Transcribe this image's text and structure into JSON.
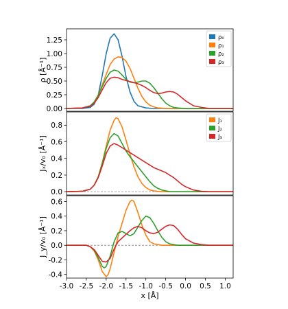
{
  "chart_data": {
    "type": "line",
    "shared_x": {
      "label_html": "x [Å]",
      "xlim": [
        -3.0,
        1.2
      ],
      "ticks": [
        -3.0,
        -2.5,
        -2.0,
        -1.5,
        -1.0,
        -0.5,
        0.0,
        0.5,
        1.0
      ],
      "tick_labels": [
        "-3.0",
        "-2.5",
        "-2.0",
        "-1.5",
        "-1.0",
        "-0.5",
        "0.0",
        "0.5",
        "1.0"
      ]
    },
    "panels": [
      {
        "id": "rho",
        "ylabel": "ρ [Å⁻¹]",
        "ylim": [
          -0.05,
          1.45
        ],
        "yticks": [
          0.0,
          0.25,
          0.5,
          0.75,
          1.0,
          1.25
        ],
        "ytick_labels": [
          "0.00",
          "0.25",
          "0.50",
          "0.75",
          "1.00",
          "1.25"
        ],
        "zero_line": false,
        "legend": "top-right",
        "series": [
          {
            "name": "ρ₀",
            "color": "#1f77b4",
            "x": [
              -3.0,
              -2.6,
              -2.4,
              -2.3,
              -2.2,
              -2.1,
              -2.0,
              -1.9,
              -1.8,
              -1.7,
              -1.6,
              -1.5,
              -1.4,
              -1.3,
              -1.2,
              -1.0,
              -0.8,
              -0.5,
              0.0,
              1.2
            ],
            "y": [
              0,
              0,
              0.02,
              0.08,
              0.25,
              0.6,
              1.0,
              1.28,
              1.36,
              1.25,
              0.95,
              0.58,
              0.3,
              0.13,
              0.05,
              0.01,
              0,
              0,
              0,
              0
            ]
          },
          {
            "name": "ρ₁",
            "color": "#ff7f0e",
            "x": [
              -3.0,
              -2.6,
              -2.4,
              -2.3,
              -2.2,
              -2.1,
              -2.0,
              -1.9,
              -1.8,
              -1.7,
              -1.6,
              -1.5,
              -1.4,
              -1.3,
              -1.2,
              -1.1,
              -1.0,
              -0.9,
              -0.8,
              -0.7,
              -0.6,
              -0.4,
              -0.2,
              0.0,
              1.2
            ],
            "y": [
              0,
              0.01,
              0.05,
              0.12,
              0.25,
              0.43,
              0.62,
              0.8,
              0.9,
              0.94,
              0.93,
              0.86,
              0.73,
              0.55,
              0.37,
              0.22,
              0.12,
              0.06,
              0.03,
              0.01,
              0.005,
              0,
              0,
              0,
              0
            ]
          },
          {
            "name": "ρ₂",
            "color": "#2ca02c",
            "x": [
              -3.0,
              -2.6,
              -2.4,
              -2.3,
              -2.2,
              -2.1,
              -2.0,
              -1.9,
              -1.8,
              -1.7,
              -1.6,
              -1.5,
              -1.4,
              -1.3,
              -1.2,
              -1.1,
              -1.0,
              -0.9,
              -0.8,
              -0.7,
              -0.6,
              -0.5,
              -0.4,
              -0.3,
              -0.2,
              0.0,
              0.3,
              1.2
            ],
            "y": [
              0,
              0.01,
              0.05,
              0.12,
              0.24,
              0.4,
              0.55,
              0.66,
              0.7,
              0.68,
              0.61,
              0.53,
              0.48,
              0.47,
              0.48,
              0.5,
              0.5,
              0.46,
              0.38,
              0.28,
              0.18,
              0.1,
              0.05,
              0.02,
              0.01,
              0,
              0,
              0
            ]
          },
          {
            "name": "ρ₃",
            "color": "#d62728",
            "x": [
              -3.0,
              -2.6,
              -2.4,
              -2.3,
              -2.2,
              -2.1,
              -2.0,
              -1.9,
              -1.8,
              -1.7,
              -1.6,
              -1.5,
              -1.4,
              -1.3,
              -1.2,
              -1.1,
              -1.0,
              -0.9,
              -0.8,
              -0.7,
              -0.6,
              -0.5,
              -0.4,
              -0.3,
              -0.2,
              -0.1,
              0.0,
              0.2,
              0.4,
              0.6,
              1.2
            ],
            "y": [
              0,
              0.01,
              0.04,
              0.1,
              0.2,
              0.34,
              0.47,
              0.55,
              0.57,
              0.56,
              0.53,
              0.51,
              0.49,
              0.47,
              0.45,
              0.42,
              0.38,
              0.33,
              0.29,
              0.27,
              0.28,
              0.3,
              0.31,
              0.3,
              0.26,
              0.2,
              0.14,
              0.05,
              0.02,
              0,
              0
            ]
          }
        ]
      },
      {
        "id": "jx",
        "ylabel": "Jₓ/v₀ [Å⁻¹]",
        "ylim": [
          -0.04,
          0.96
        ],
        "yticks": [
          0.0,
          0.2,
          0.4,
          0.6,
          0.8
        ],
        "ytick_labels": [
          "0.0",
          "0.2",
          "0.4",
          "0.6",
          "0.8"
        ],
        "zero_line": true,
        "legend": "top-right",
        "series": [
          {
            "name": "J₁",
            "color": "#ff7f0e",
            "x": [
              -3.0,
              -2.6,
              -2.4,
              -2.3,
              -2.2,
              -2.1,
              -2.0,
              -1.9,
              -1.8,
              -1.75,
              -1.7,
              -1.6,
              -1.5,
              -1.4,
              -1.3,
              -1.2,
              -1.1,
              -1.0,
              -0.9,
              -0.8,
              -0.6,
              -0.4,
              1.2
            ],
            "y": [
              0,
              0.005,
              0.03,
              0.08,
              0.18,
              0.35,
              0.55,
              0.74,
              0.86,
              0.89,
              0.88,
              0.78,
              0.62,
              0.45,
              0.3,
              0.18,
              0.1,
              0.05,
              0.02,
              0.01,
              0,
              0,
              0
            ]
          },
          {
            "name": "J₂",
            "color": "#2ca02c",
            "x": [
              -3.0,
              -2.6,
              -2.4,
              -2.3,
              -2.2,
              -2.1,
              -2.0,
              -1.9,
              -1.8,
              -1.7,
              -1.6,
              -1.5,
              -1.4,
              -1.3,
              -1.2,
              -1.1,
              -1.0,
              -0.9,
              -0.8,
              -0.7,
              -0.6,
              -0.5,
              -0.4,
              -0.2,
              0.0,
              1.2
            ],
            "y": [
              0,
              0.005,
              0.03,
              0.08,
              0.18,
              0.34,
              0.52,
              0.65,
              0.7,
              0.67,
              0.58,
              0.49,
              0.42,
              0.36,
              0.3,
              0.24,
              0.18,
              0.12,
              0.07,
              0.04,
              0.02,
              0.01,
              0,
              0,
              0,
              0
            ]
          },
          {
            "name": "J₃",
            "color": "#d62728",
            "x": [
              -3.0,
              -2.6,
              -2.4,
              -2.3,
              -2.2,
              -2.1,
              -2.0,
              -1.9,
              -1.8,
              -1.7,
              -1.6,
              -1.5,
              -1.4,
              -1.3,
              -1.2,
              -1.1,
              -1.0,
              -0.9,
              -0.8,
              -0.7,
              -0.6,
              -0.5,
              -0.4,
              -0.3,
              -0.2,
              -0.1,
              0.0,
              0.2,
              0.4,
              0.6,
              1.2
            ],
            "y": [
              0,
              0.005,
              0.03,
              0.08,
              0.17,
              0.31,
              0.46,
              0.55,
              0.58,
              0.56,
              0.53,
              0.5,
              0.47,
              0.44,
              0.41,
              0.38,
              0.35,
              0.32,
              0.29,
              0.27,
              0.25,
              0.23,
              0.2,
              0.17,
              0.13,
              0.09,
              0.06,
              0.02,
              0.005,
              0,
              0
            ]
          }
        ]
      },
      {
        "id": "jy",
        "ylabel": "J_y/v₀ [Å⁻¹]",
        "ylim": [
          -0.45,
          0.68
        ],
        "yticks": [
          -0.4,
          -0.2,
          0.0,
          0.2,
          0.4,
          0.6
        ],
        "ytick_labels": [
          "-0.4",
          "-0.2",
          "0.0",
          "0.2",
          "0.4",
          "0.6"
        ],
        "zero_line": true,
        "legend": "none",
        "series": [
          {
            "name": "J₁",
            "color": "#ff7f0e",
            "x": [
              -3.0,
              -2.5,
              -2.4,
              -2.3,
              -2.2,
              -2.1,
              -2.0,
              -1.95,
              -1.9,
              -1.8,
              -1.7,
              -1.6,
              -1.5,
              -1.4,
              -1.35,
              -1.3,
              -1.2,
              -1.1,
              -1.0,
              -0.9,
              -0.8,
              -0.6,
              -0.4,
              1.2
            ],
            "y": [
              0,
              0,
              -0.02,
              -0.08,
              -0.2,
              -0.36,
              -0.43,
              -0.4,
              -0.32,
              -0.1,
              0.12,
              0.3,
              0.48,
              0.6,
              0.62,
              0.6,
              0.45,
              0.28,
              0.14,
              0.05,
              0.02,
              0,
              0,
              0
            ]
          },
          {
            "name": "J₂",
            "color": "#2ca02c",
            "x": [
              -3.0,
              -2.5,
              -2.4,
              -2.3,
              -2.2,
              -2.1,
              -2.05,
              -2.0,
              -1.9,
              -1.8,
              -1.7,
              -1.6,
              -1.5,
              -1.4,
              -1.3,
              -1.2,
              -1.1,
              -1.0,
              -0.9,
              -0.8,
              -0.7,
              -0.6,
              -0.5,
              -0.4,
              -0.2,
              0.0,
              1.2
            ],
            "y": [
              0,
              0,
              -0.02,
              -0.07,
              -0.17,
              -0.29,
              -0.31,
              -0.29,
              -0.15,
              0.05,
              0.17,
              0.19,
              0.16,
              0.13,
              0.16,
              0.25,
              0.34,
              0.4,
              0.38,
              0.3,
              0.2,
              0.11,
              0.05,
              0.02,
              0,
              0,
              0
            ]
          },
          {
            "name": "J₃",
            "color": "#d62728",
            "x": [
              -3.0,
              -2.5,
              -2.4,
              -2.3,
              -2.2,
              -2.1,
              -2.0,
              -1.9,
              -1.8,
              -1.7,
              -1.6,
              -1.5,
              -1.4,
              -1.3,
              -1.2,
              -1.1,
              -1.0,
              -0.9,
              -0.8,
              -0.7,
              -0.6,
              -0.5,
              -0.4,
              -0.3,
              -0.2,
              -0.1,
              0.0,
              0.2,
              0.4,
              0.6,
              1.2
            ],
            "y": [
              0,
              0,
              -0.02,
              -0.06,
              -0.14,
              -0.22,
              -0.23,
              -0.18,
              -0.05,
              0.05,
              0.1,
              0.15,
              0.2,
              0.24,
              0.26,
              0.24,
              0.2,
              0.17,
              0.16,
              0.18,
              0.22,
              0.26,
              0.28,
              0.27,
              0.22,
              0.15,
              0.09,
              0.03,
              0.01,
              0,
              0
            ]
          }
        ]
      }
    ]
  }
}
